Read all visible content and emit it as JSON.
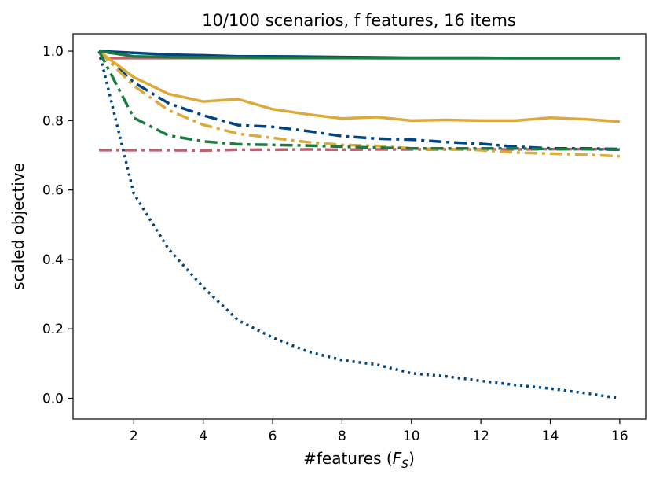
{
  "chart_data": {
    "type": "line",
    "title": "10/100 scenarios, f features, 16 items",
    "xlabel": "#features (F_S)",
    "xlabel_main": "#features (",
    "xlabel_var": "F",
    "xlabel_sub": "S",
    "xlabel_close": ")",
    "ylabel": "scaled objective",
    "xlim": [
      0.25,
      16.75
    ],
    "ylim": [
      -0.06,
      1.05
    ],
    "xticks": [
      2,
      4,
      6,
      8,
      10,
      12,
      14,
      16
    ],
    "yticks": [
      0.0,
      0.2,
      0.4,
      0.6,
      0.8,
      1.0
    ],
    "xtick_labels": [
      "2",
      "4",
      "6",
      "8",
      "10",
      "12",
      "14",
      "16"
    ],
    "ytick_labels": [
      "0.0",
      "0.2",
      "0.4",
      "0.6",
      "0.8",
      "1.0"
    ],
    "grid": false,
    "legend": "none",
    "x": [
      1,
      2,
      3,
      4,
      5,
      6,
      7,
      8,
      9,
      10,
      11,
      12,
      13,
      14,
      15,
      16
    ],
    "series": [
      {
        "color": "#c06070",
        "style": "solid",
        "values": [
          0.98,
          0.98,
          0.98,
          0.98,
          0.98,
          0.98,
          0.98,
          0.98,
          0.98,
          0.98,
          0.98,
          0.98,
          0.98,
          0.98,
          0.98,
          0.98
        ]
      },
      {
        "color": "#c06070",
        "style": "dashdot",
        "values": [
          0.715,
          0.715,
          0.715,
          0.714,
          0.716,
          0.716,
          0.717,
          0.716,
          0.717,
          0.717,
          0.717,
          0.717,
          0.717,
          0.718,
          0.718,
          0.718
        ]
      },
      {
        "color": "#00457f",
        "style": "dotted",
        "values": [
          1.0,
          0.59,
          0.43,
          0.32,
          0.225,
          0.175,
          0.135,
          0.11,
          0.097,
          0.072,
          0.063,
          0.05,
          0.038,
          0.028,
          0.015,
          0.0
        ]
      },
      {
        "color": "#00457f",
        "style": "solid",
        "values": [
          1.0,
          0.995,
          0.99,
          0.988,
          0.985,
          0.985,
          0.984,
          0.983,
          0.982,
          0.981,
          0.981,
          0.981,
          0.98,
          0.98,
          0.98,
          0.98
        ]
      },
      {
        "color": "#00457f",
        "style": "dashdot",
        "values": [
          1.0,
          0.91,
          0.85,
          0.815,
          0.787,
          0.782,
          0.77,
          0.755,
          0.748,
          0.745,
          0.738,
          0.733,
          0.725,
          0.72,
          0.72,
          0.718
        ]
      },
      {
        "color": "#dcaa38",
        "style": "solid",
        "values": [
          1.0,
          0.925,
          0.877,
          0.855,
          0.862,
          0.833,
          0.818,
          0.806,
          0.81,
          0.8,
          0.802,
          0.8,
          0.8,
          0.808,
          0.804,
          0.797
        ]
      },
      {
        "color": "#dcaa38",
        "style": "dashdot",
        "values": [
          1.0,
          0.9,
          0.83,
          0.788,
          0.762,
          0.75,
          0.738,
          0.73,
          0.727,
          0.72,
          0.718,
          0.715,
          0.708,
          0.705,
          0.702,
          0.697
        ]
      },
      {
        "color": "#1a7a40",
        "style": "solid",
        "values": [
          1.0,
          0.985,
          0.983,
          0.982,
          0.982,
          0.981,
          0.981,
          0.981,
          0.98,
          0.98,
          0.98,
          0.98,
          0.98,
          0.98,
          0.98,
          0.98
        ]
      },
      {
        "color": "#1a7a40",
        "style": "dashdot",
        "values": [
          1.0,
          0.808,
          0.757,
          0.74,
          0.732,
          0.73,
          0.728,
          0.725,
          0.722,
          0.72,
          0.72,
          0.72,
          0.72,
          0.718,
          0.718,
          0.716
        ]
      }
    ]
  }
}
